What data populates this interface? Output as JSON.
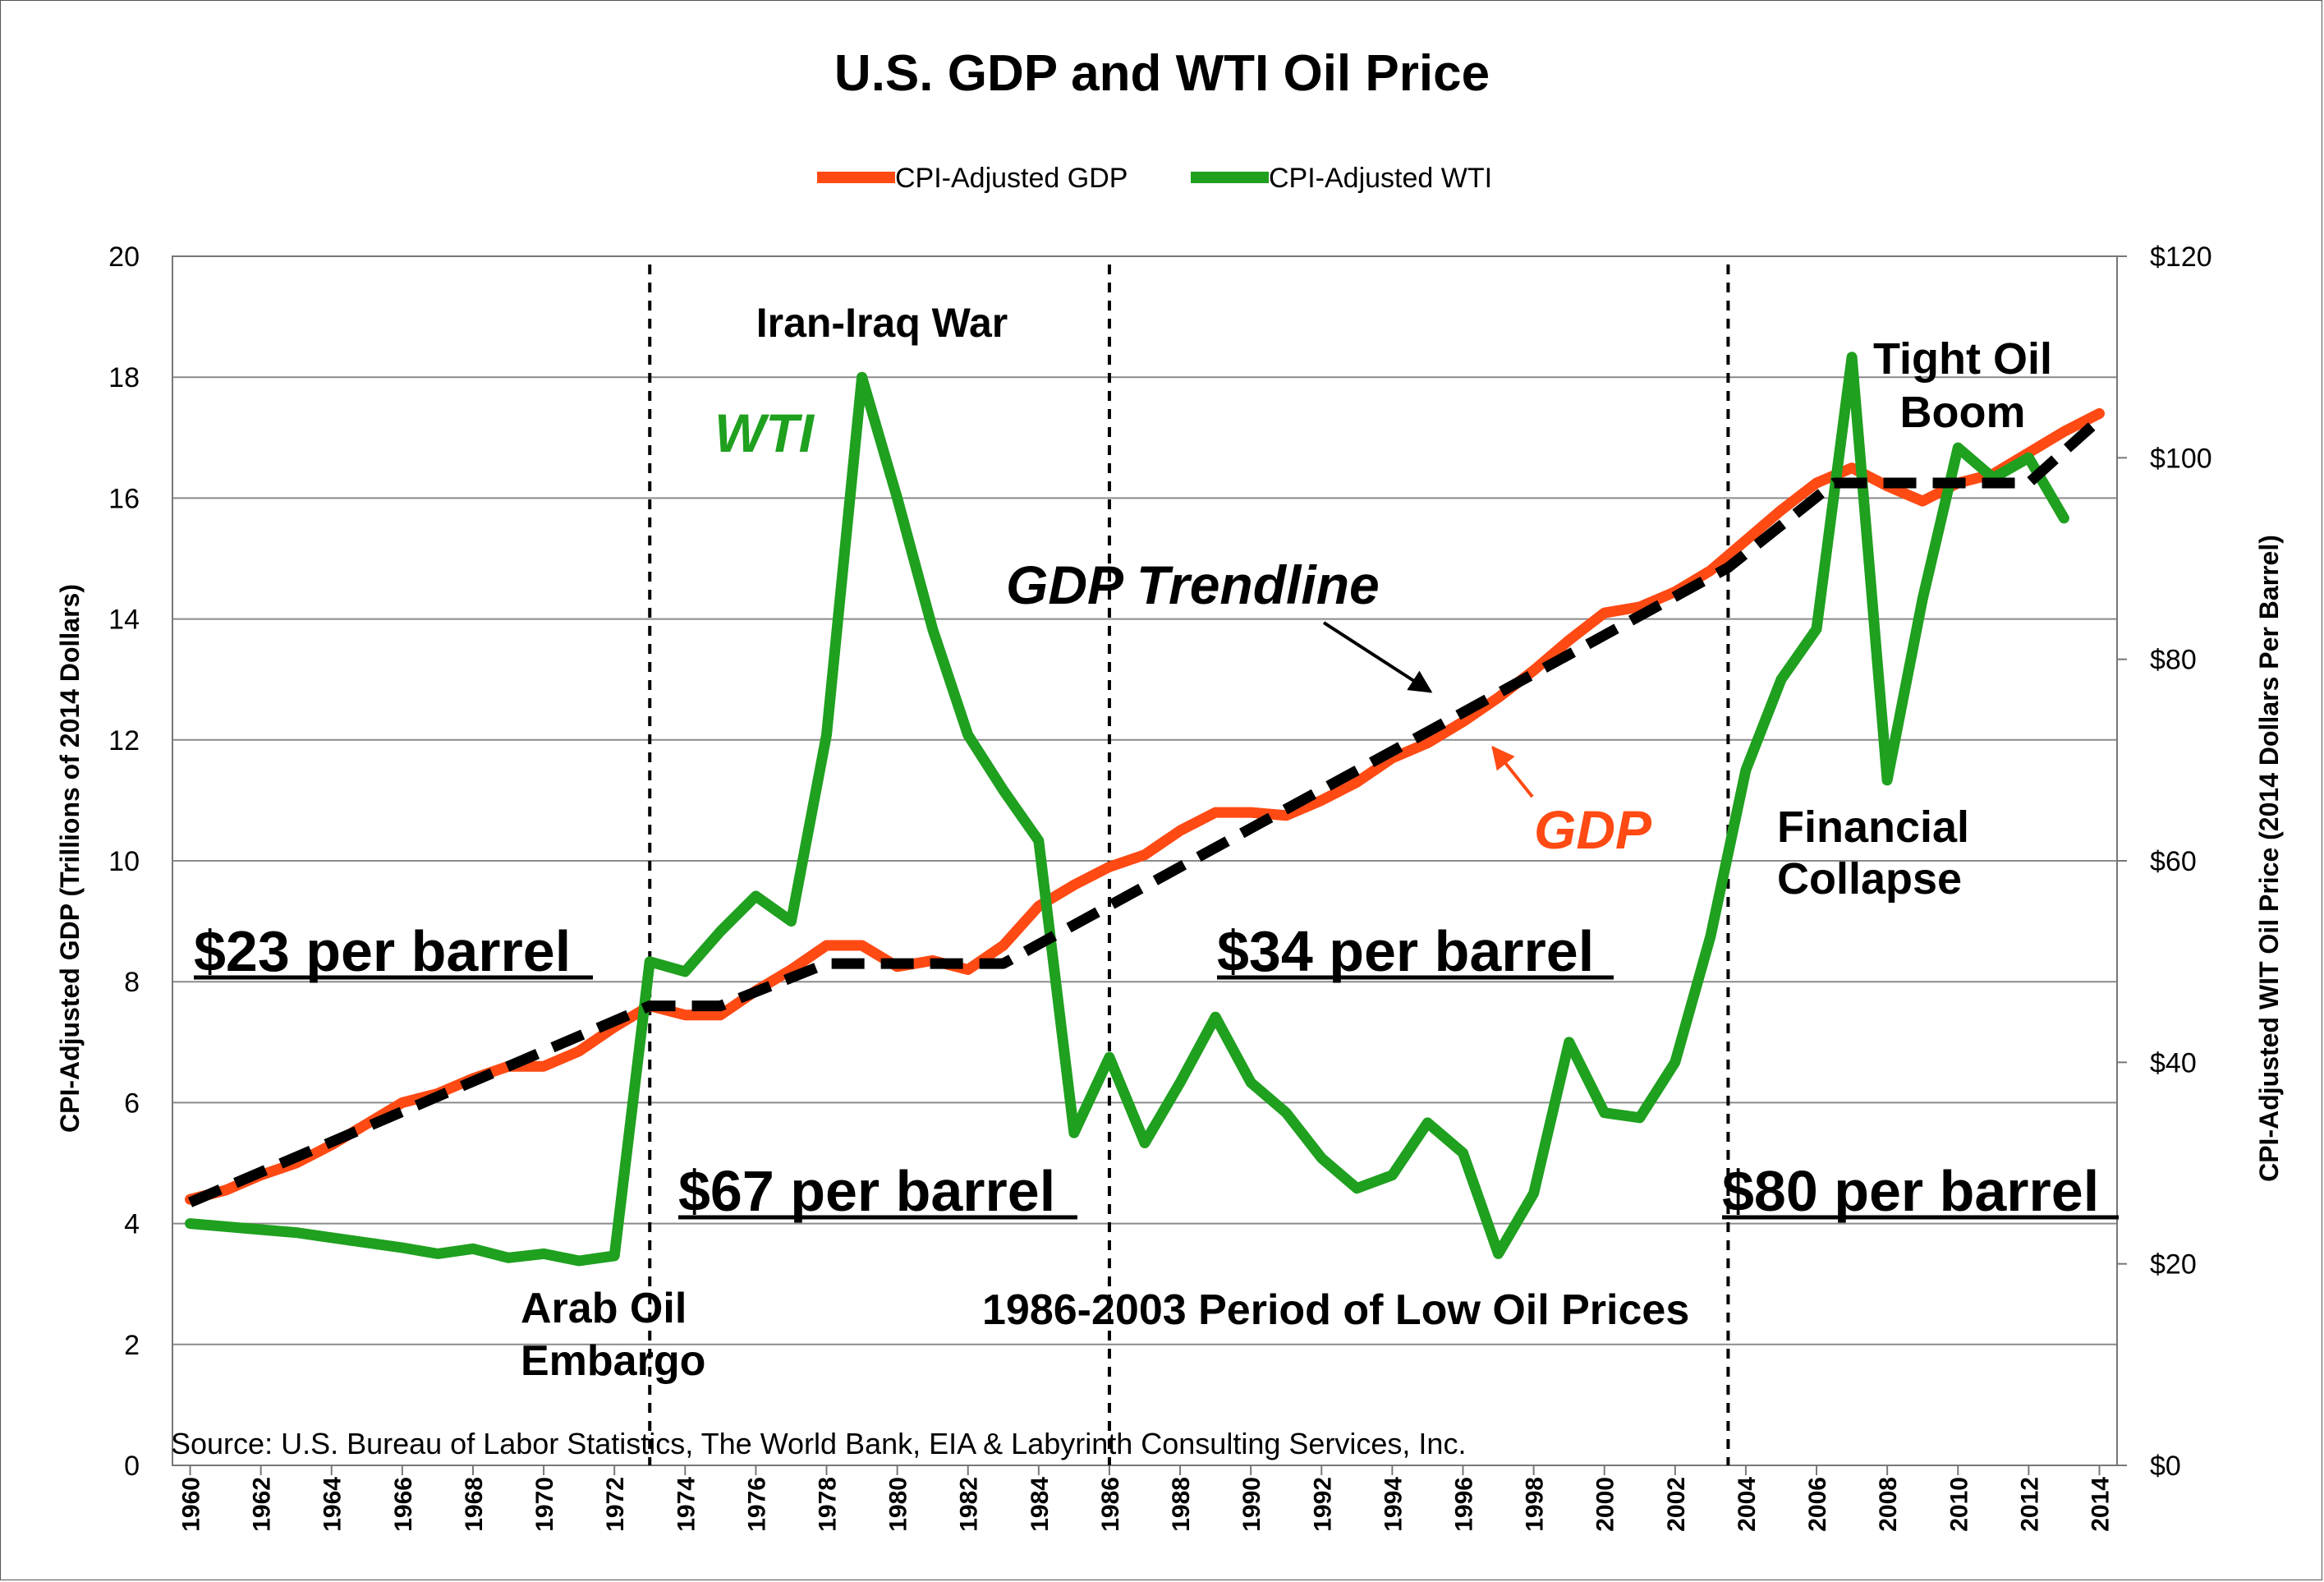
{
  "chart_data": {
    "type": "line",
    "title": "U.S. GDP and WTI Oil Price",
    "legend": {
      "placement": "top-center",
      "entries": [
        {
          "label": "CPI-Adjusted GDP",
          "color": "#ff4a14"
        },
        {
          "label": "CPI-Adjusted WTI",
          "color": "#1fa01f"
        }
      ]
    },
    "y_left_label": "CPI-Adjusted GDP (Trillions of 2014 Dollars)",
    "y_right_label": "CPI-Adjusted WIT Oil Price (2014 Dollars Per Barrel)",
    "y_left_range": [
      0,
      20
    ],
    "y_right_range": [
      0,
      120
    ],
    "y_left_ticks": [
      {
        "v": 0,
        "label": "0"
      },
      {
        "v": 2,
        "label": "2"
      },
      {
        "v": 4,
        "label": "4"
      },
      {
        "v": 6,
        "label": "6"
      },
      {
        "v": 8,
        "label": "8"
      },
      {
        "v": 10,
        "label": "10"
      },
      {
        "v": 12,
        "label": "12"
      },
      {
        "v": 14,
        "label": "14"
      },
      {
        "v": 16,
        "label": "16"
      },
      {
        "v": 18,
        "label": "18"
      },
      {
        "v": 20,
        "label": "20"
      }
    ],
    "y_right_ticks": [
      {
        "v": 0,
        "label": "$0"
      },
      {
        "v": 20,
        "label": "$20"
      },
      {
        "v": 40,
        "label": "$40"
      },
      {
        "v": 60,
        "label": "$60"
      },
      {
        "v": 80,
        "label": "$80"
      },
      {
        "v": 100,
        "label": "$100"
      },
      {
        "v": 120,
        "label": "$120"
      }
    ],
    "x_range": [
      1959.5,
      2014.5
    ],
    "x_ticks": [
      1960,
      1962,
      1964,
      1966,
      1968,
      1970,
      1972,
      1974,
      1976,
      1978,
      1980,
      1982,
      1984,
      1986,
      1988,
      1990,
      1992,
      1994,
      1996,
      1998,
      2000,
      2002,
      2004,
      2006,
      2008,
      2010,
      2012,
      2014
    ],
    "grid": true,
    "gdp": {
      "name": "CPI-Adjusted GDP",
      "color": "#ff4a14",
      "x": [
        1960,
        1961,
        1962,
        1963,
        1964,
        1965,
        1966,
        1967,
        1968,
        1969,
        1970,
        1971,
        1972,
        1973,
        1974,
        1975,
        1976,
        1977,
        1978,
        1979,
        1980,
        1981,
        1982,
        1983,
        1984,
        1985,
        1986,
        1987,
        1988,
        1989,
        1990,
        1991,
        1992,
        1993,
        1994,
        1995,
        1996,
        1997,
        1998,
        1999,
        2000,
        2001,
        2002,
        2003,
        2004,
        2005,
        2006,
        2007,
        2008,
        2009,
        2010,
        2011,
        2012,
        2013,
        2014
      ],
      "y": [
        4.4,
        4.55,
        4.8,
        5.0,
        5.3,
        5.65,
        6.0,
        6.15,
        6.4,
        6.6,
        6.6,
        6.85,
        7.25,
        7.6,
        7.45,
        7.45,
        7.85,
        8.2,
        8.6,
        8.6,
        8.25,
        8.35,
        8.2,
        8.6,
        9.25,
        9.6,
        9.9,
        10.1,
        10.5,
        10.8,
        10.8,
        10.75,
        11.0,
        11.3,
        11.7,
        11.95,
        12.3,
        12.7,
        13.15,
        13.65,
        14.1,
        14.2,
        14.45,
        14.8,
        15.3,
        15.8,
        16.25,
        16.5,
        16.2,
        15.95,
        16.25,
        16.4,
        16.75,
        17.1,
        17.4
      ]
    },
    "wti": {
      "name": "CPI-Adjusted WTI",
      "color": "#1fa01f",
      "x": [
        1960,
        1961,
        1962,
        1963,
        1964,
        1965,
        1966,
        1967,
        1968,
        1969,
        1970,
        1971,
        1972,
        1973,
        1974,
        1975,
        1976,
        1977,
        1978,
        1979,
        1980,
        1981,
        1982,
        1983,
        1984,
        1985,
        1986,
        1987,
        1988,
        1989,
        1990,
        1991,
        1992,
        1993,
        1994,
        1995,
        1996,
        1997,
        1998,
        1999,
        2000,
        2001,
        2002,
        2003,
        2004,
        2005,
        2006,
        2007,
        2008,
        2009,
        2010,
        2011,
        2012,
        2013
      ],
      "y": [
        24,
        23.7,
        23.4,
        23.1,
        22.6,
        22.1,
        21.6,
        21,
        21.5,
        20.6,
        21,
        20.3,
        20.8,
        50,
        49,
        53,
        56.5,
        54,
        72.5,
        108,
        96,
        83,
        72.5,
        67,
        62,
        33,
        40.5,
        32,
        38,
        44.5,
        38,
        35,
        30.5,
        27.5,
        28.8,
        34,
        31,
        21,
        27,
        42,
        35,
        34.5,
        40,
        52.5,
        69,
        78,
        83,
        110,
        68,
        86,
        101,
        98,
        100,
        94
      ]
    },
    "trendline": {
      "label": "GDP Trendline",
      "color": "#000000",
      "x": [
        1960,
        1973,
        1975,
        1978,
        1983,
        2003.5,
        2006.5,
        2012,
        2014
      ],
      "y": [
        4.35,
        7.6,
        7.6,
        8.3,
        8.3,
        14.85,
        16.25,
        16.25,
        17.3
      ]
    },
    "period_dividers": [
      1973,
      1986,
      2003.5
    ],
    "annotations": {
      "iran_iraq_war": "Iran-Iraq War",
      "wti_label": "WTI",
      "gdp_trendline": "GDP Trendline",
      "gdp_label": "GDP",
      "tight_oil_1": "Tight Oil",
      "tight_oil_2": "Boom",
      "financial_1": "Financial",
      "financial_2": "Collapse",
      "price_23": "$23 per barrel",
      "price_34": "$34 per barrel",
      "price_67": "$67 per barrel",
      "price_80": "$80 per barrel",
      "arab_1": "Arab Oil",
      "arab_2": "Embargo",
      "low_period": "1986-2003 Period of Low Oil Prices",
      "source": "Source: U.S. Bureau of Labor Statistics, The World Bank, EIA & Labyrinth Consulting Services, Inc."
    }
  }
}
